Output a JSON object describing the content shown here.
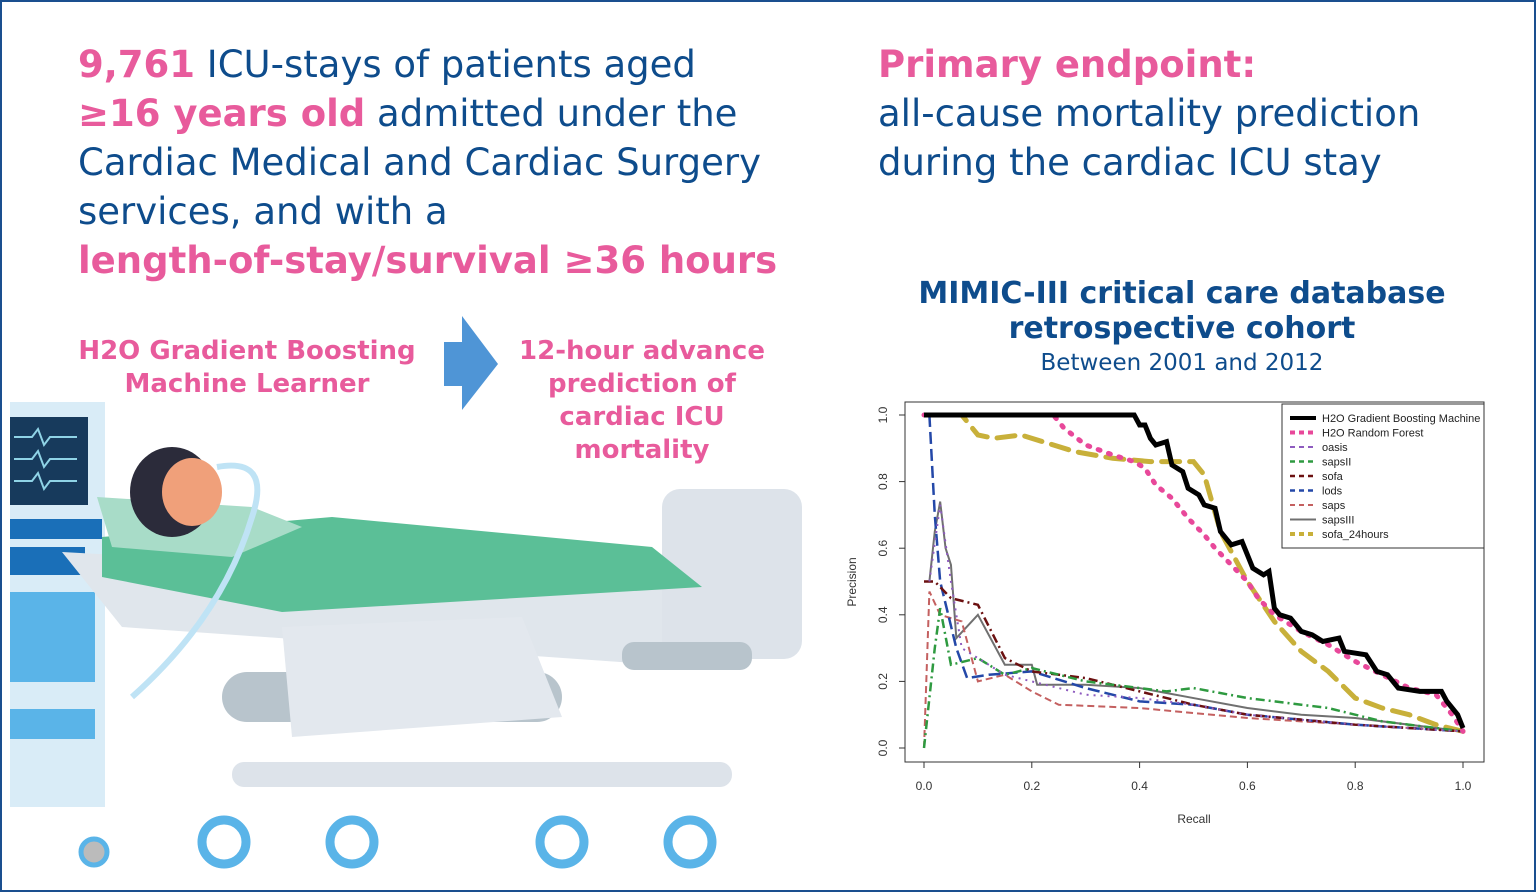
{
  "left_text": {
    "count": "9,761",
    "line1_rest": " ICU-stays of patients aged",
    "age": "≥16 years old",
    "line2_rest": " admitted under the",
    "line3": "Cardiac Medical and Cardiac Surgery",
    "line4": "services, and with a",
    "los": "length-of-stay/survival ≥36 hours"
  },
  "right_text": {
    "endpoint_label": "Primary endpoint:",
    "line2": "all-cause mortality prediction",
    "line3": "during the cardiac ICU stay"
  },
  "flow": {
    "model_line1": "H2O Gradient Boosting",
    "model_line2": "Machine Learner",
    "outcome_line1": "12-hour advance",
    "outcome_line2": "prediction of",
    "outcome_line3": "cardiac ICU",
    "outcome_line4": "mortality"
  },
  "database": {
    "title_line1": "MIMIC-III critical care database",
    "title_line2": "retrospective cohort",
    "subtitle": "Between 2001 and 2012"
  },
  "colors": {
    "brand_blue": "#0e4c8c",
    "accent_pink": "#e85b9c"
  },
  "chart_data": {
    "type": "line",
    "xlabel": "Recall",
    "ylabel": "Precision",
    "xlim": [
      0,
      1
    ],
    "ylim": [
      0,
      1
    ],
    "xticks": [
      "0.0",
      "0.2",
      "0.4",
      "0.6",
      "0.8",
      "1.0"
    ],
    "yticks": [
      "0.0",
      "0.2",
      "0.4",
      "0.6",
      "0.8",
      "1.0"
    ],
    "grid": false,
    "legend_placement": "top-right",
    "series": [
      {
        "name": "H2O Gradient Boosting Machine",
        "color": "#000000",
        "style": "solid-thick",
        "points": [
          [
            0,
            1
          ],
          [
            0.39,
            1
          ],
          [
            0.4,
            0.97
          ],
          [
            0.41,
            0.97
          ],
          [
            0.42,
            0.93
          ],
          [
            0.43,
            0.91
          ],
          [
            0.45,
            0.92
          ],
          [
            0.46,
            0.85
          ],
          [
            0.48,
            0.83
          ],
          [
            0.49,
            0.78
          ],
          [
            0.51,
            0.76
          ],
          [
            0.52,
            0.73
          ],
          [
            0.54,
            0.72
          ],
          [
            0.55,
            0.65
          ],
          [
            0.57,
            0.61
          ],
          [
            0.59,
            0.62
          ],
          [
            0.6,
            0.58
          ],
          [
            0.61,
            0.54
          ],
          [
            0.63,
            0.52
          ],
          [
            0.64,
            0.53
          ],
          [
            0.65,
            0.42
          ],
          [
            0.66,
            0.4
          ],
          [
            0.68,
            0.39
          ],
          [
            0.7,
            0.35
          ],
          [
            0.72,
            0.34
          ],
          [
            0.74,
            0.32
          ],
          [
            0.77,
            0.33
          ],
          [
            0.78,
            0.29
          ],
          [
            0.82,
            0.28
          ],
          [
            0.84,
            0.23
          ],
          [
            0.86,
            0.22
          ],
          [
            0.88,
            0.18
          ],
          [
            0.92,
            0.17
          ],
          [
            0.96,
            0.17
          ],
          [
            0.97,
            0.14
          ],
          [
            0.99,
            0.1
          ],
          [
            1,
            0.06
          ]
        ]
      },
      {
        "name": "H2O Random Forest",
        "color": "#e8489a",
        "style": "dotted-thick",
        "points": [
          [
            0,
            1
          ],
          [
            0.24,
            1
          ],
          [
            0.26,
            0.96
          ],
          [
            0.3,
            0.91
          ],
          [
            0.35,
            0.88
          ],
          [
            0.39,
            0.86
          ],
          [
            0.41,
            0.84
          ],
          [
            0.43,
            0.79
          ],
          [
            0.46,
            0.75
          ],
          [
            0.49,
            0.69
          ],
          [
            0.52,
            0.64
          ],
          [
            0.54,
            0.6
          ],
          [
            0.57,
            0.55
          ],
          [
            0.6,
            0.5
          ],
          [
            0.62,
            0.45
          ],
          [
            0.65,
            0.4
          ],
          [
            0.7,
            0.35
          ],
          [
            0.75,
            0.31
          ],
          [
            0.8,
            0.26
          ],
          [
            0.85,
            0.22
          ],
          [
            0.9,
            0.18
          ],
          [
            0.95,
            0.16
          ],
          [
            0.98,
            0.1
          ],
          [
            1,
            0.05
          ]
        ]
      },
      {
        "name": "oasis",
        "color": "#8e5bbf",
        "style": "dotted",
        "points": [
          [
            0.01,
            0.5
          ],
          [
            0.03,
            0.73
          ],
          [
            0.05,
            0.5
          ],
          [
            0.07,
            0.3
          ],
          [
            0.1,
            0.27
          ],
          [
            0.15,
            0.22
          ],
          [
            0.2,
            0.2
          ],
          [
            0.3,
            0.16
          ],
          [
            0.4,
            0.15
          ],
          [
            0.5,
            0.13
          ],
          [
            0.6,
            0.1
          ],
          [
            0.8,
            0.07
          ],
          [
            1,
            0.05
          ]
        ]
      },
      {
        "name": "sapsII",
        "color": "#2e9a40",
        "style": "dashdot",
        "points": [
          [
            0,
            0
          ],
          [
            0.02,
            0.3
          ],
          [
            0.03,
            0.42
          ],
          [
            0.05,
            0.25
          ],
          [
            0.1,
            0.27
          ],
          [
            0.15,
            0.22
          ],
          [
            0.2,
            0.24
          ],
          [
            0.3,
            0.2
          ],
          [
            0.45,
            0.17
          ],
          [
            0.5,
            0.18
          ],
          [
            0.6,
            0.15
          ],
          [
            0.75,
            0.12
          ],
          [
            0.85,
            0.08
          ],
          [
            1,
            0.05
          ]
        ]
      },
      {
        "name": "sofa",
        "color": "#6b1010",
        "style": "dashdot",
        "points": [
          [
            0,
            0.5
          ],
          [
            0.02,
            0.5
          ],
          [
            0.05,
            0.45
          ],
          [
            0.1,
            0.43
          ],
          [
            0.15,
            0.27
          ],
          [
            0.2,
            0.23
          ],
          [
            0.3,
            0.21
          ],
          [
            0.4,
            0.17
          ],
          [
            0.5,
            0.13
          ],
          [
            0.6,
            0.1
          ],
          [
            0.8,
            0.07
          ],
          [
            1,
            0.05
          ]
        ]
      },
      {
        "name": "lods",
        "color": "#2448a8",
        "style": "longdash",
        "points": [
          [
            0.01,
            1
          ],
          [
            0.02,
            0.7
          ],
          [
            0.03,
            0.5
          ],
          [
            0.06,
            0.3
          ],
          [
            0.08,
            0.21
          ],
          [
            0.12,
            0.22
          ],
          [
            0.2,
            0.23
          ],
          [
            0.3,
            0.18
          ],
          [
            0.4,
            0.14
          ],
          [
            0.5,
            0.13
          ],
          [
            0.6,
            0.1
          ],
          [
            0.8,
            0.07
          ],
          [
            1,
            0.05
          ]
        ]
      },
      {
        "name": "saps",
        "color": "#c46060",
        "style": "dashed",
        "points": [
          [
            0,
            0
          ],
          [
            0.01,
            0.47
          ],
          [
            0.03,
            0.4
          ],
          [
            0.07,
            0.38
          ],
          [
            0.1,
            0.2
          ],
          [
            0.15,
            0.22
          ],
          [
            0.2,
            0.17
          ],
          [
            0.25,
            0.13
          ],
          [
            0.4,
            0.12
          ],
          [
            0.6,
            0.09
          ],
          [
            0.8,
            0.07
          ],
          [
            1,
            0.05
          ]
        ]
      },
      {
        "name": "sapsIII",
        "color": "#707070",
        "style": "solid",
        "points": [
          [
            0.01,
            0.5
          ],
          [
            0.02,
            0.65
          ],
          [
            0.03,
            0.74
          ],
          [
            0.04,
            0.6
          ],
          [
            0.05,
            0.55
          ],
          [
            0.06,
            0.33
          ],
          [
            0.1,
            0.4
          ],
          [
            0.15,
            0.25
          ],
          [
            0.2,
            0.25
          ],
          [
            0.21,
            0.19
          ],
          [
            0.3,
            0.19
          ],
          [
            0.4,
            0.18
          ],
          [
            0.5,
            0.15
          ],
          [
            0.6,
            0.12
          ],
          [
            0.7,
            0.1
          ],
          [
            0.8,
            0.09
          ],
          [
            1,
            0.05
          ]
        ]
      },
      {
        "name": "sofa_24hours",
        "color": "#c8b03a",
        "style": "dashed-thick",
        "points": [
          [
            0.05,
            1
          ],
          [
            0.07,
            1
          ],
          [
            0.1,
            0.94
          ],
          [
            0.13,
            0.93
          ],
          [
            0.18,
            0.94
          ],
          [
            0.22,
            0.92
          ],
          [
            0.28,
            0.89
          ],
          [
            0.35,
            0.87
          ],
          [
            0.42,
            0.86
          ],
          [
            0.5,
            0.86
          ],
          [
            0.52,
            0.82
          ],
          [
            0.55,
            0.65
          ],
          [
            0.6,
            0.5
          ],
          [
            0.65,
            0.38
          ],
          [
            0.7,
            0.29
          ],
          [
            0.75,
            0.23
          ],
          [
            0.8,
            0.15
          ],
          [
            0.85,
            0.12
          ],
          [
            0.9,
            0.1
          ],
          [
            0.95,
            0.07
          ],
          [
            1,
            0.05
          ]
        ]
      }
    ]
  }
}
